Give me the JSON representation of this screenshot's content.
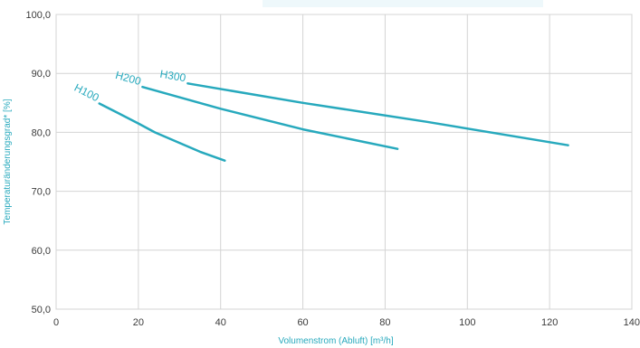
{
  "accent_color": "#27a9bd",
  "chart_data": {
    "type": "line",
    "title": "",
    "xlabel": "Volumenstrom (Abluft) [m³/h]",
    "ylabel": "Temperaturänderungsgrad* [%]",
    "xlim": [
      0,
      140
    ],
    "ylim": [
      50,
      100
    ],
    "xticks": [
      0,
      20,
      40,
      60,
      80,
      100,
      120,
      140
    ],
    "xtick_labels": [
      "0",
      "20",
      "40",
      "60",
      "80",
      "100",
      "120",
      "140"
    ],
    "yticks": [
      50,
      60,
      70,
      80,
      90,
      100
    ],
    "ytick_labels": [
      "50,0",
      "60,0",
      "70,0",
      "80,0",
      "90,0",
      "100,0"
    ],
    "grid": true,
    "legend": "none",
    "series": [
      {
        "name": "H100",
        "x": [
          10.5,
          15,
          20,
          24,
          30,
          35,
          41
        ],
        "y": [
          84.9,
          83.3,
          81.5,
          80.0,
          78.2,
          76.7,
          75.2
        ]
      },
      {
        "name": "H200",
        "x": [
          21,
          40,
          60,
          83
        ],
        "y": [
          87.7,
          84.0,
          80.5,
          77.2
        ]
      },
      {
        "name": "H300",
        "x": [
          32,
          60,
          90,
          124.5
        ],
        "y": [
          88.3,
          85.0,
          81.8,
          77.8
        ]
      }
    ]
  }
}
